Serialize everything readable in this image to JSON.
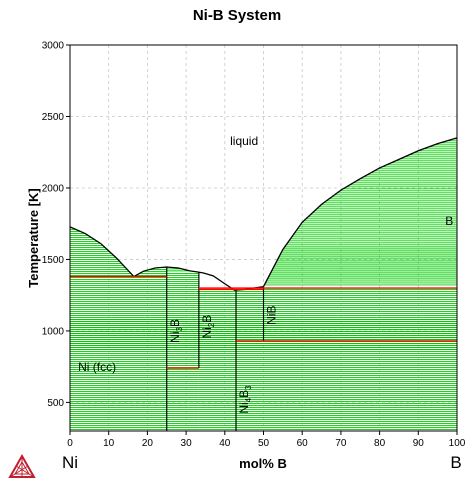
{
  "chart_data": {
    "type": "phase-diagram",
    "title": "Ni-B System",
    "xlabel": "mol% B",
    "ylabel": "Temperature [K]",
    "xlim": [
      0,
      100
    ],
    "ylim": [
      300,
      3000
    ],
    "xticks": [
      0,
      10,
      20,
      30,
      40,
      50,
      60,
      70,
      80,
      90,
      100
    ],
    "yticks": [
      500,
      1000,
      1500,
      2000,
      2500,
      3000
    ],
    "end_labels": {
      "left": "Ni",
      "right": "B"
    },
    "grid": true,
    "colors": {
      "two_phase_tie_lines": "#00cc00",
      "invariant_lines": "#ff0000",
      "boundaries": "#000000"
    },
    "liquidus": [
      {
        "x": 0,
        "y": 1728
      },
      {
        "x": 4,
        "y": 1680
      },
      {
        "x": 8,
        "y": 1610
      },
      {
        "x": 12,
        "y": 1510
      },
      {
        "x": 16.5,
        "y": 1380
      },
      {
        "x": 19,
        "y": 1418
      },
      {
        "x": 22,
        "y": 1440
      },
      {
        "x": 25,
        "y": 1447
      },
      {
        "x": 28,
        "y": 1440
      },
      {
        "x": 31,
        "y": 1420
      },
      {
        "x": 33,
        "y": 1412
      },
      {
        "x": 34.5,
        "y": 1405
      },
      {
        "x": 37,
        "y": 1385
      },
      {
        "x": 40,
        "y": 1330
      },
      {
        "x": 42.5,
        "y": 1285
      },
      {
        "x": 45,
        "y": 1290
      },
      {
        "x": 47.5,
        "y": 1300
      },
      {
        "x": 50,
        "y": 1310
      },
      {
        "x": 55,
        "y": 1570
      },
      {
        "x": 60,
        "y": 1760
      },
      {
        "x": 65,
        "y": 1885
      },
      {
        "x": 70,
        "y": 1985
      },
      {
        "x": 75,
        "y": 2065
      },
      {
        "x": 80,
        "y": 2140
      },
      {
        "x": 85,
        "y": 2200
      },
      {
        "x": 90,
        "y": 2260
      },
      {
        "x": 95,
        "y": 2310
      },
      {
        "x": 100,
        "y": 2350
      }
    ],
    "compounds": [
      {
        "label_main": "Ni",
        "label_sub": "3",
        "label_tail": "B",
        "x": 25,
        "from": 300,
        "to": 1447
      },
      {
        "label_main": "Ni",
        "label_sub": "2",
        "label_tail": "B",
        "x": 33.3,
        "from": 740,
        "to": 1412
      },
      {
        "label_main": "Ni",
        "label_sub": "4",
        "label_tail": "B",
        "label_sub2": "3",
        "x": 42.9,
        "from": 300,
        "to": 1285
      },
      {
        "label_main": "NiB",
        "x": 50,
        "from": 930,
        "to": 1310
      }
    ],
    "invariants": [
      {
        "x1": 0,
        "x2": 25,
        "y": 1380
      },
      {
        "x1": 33.3,
        "x2": 42.9,
        "y": 1290
      },
      {
        "x1": 42.9,
        "x2": 50,
        "y": 1290
      },
      {
        "x1": 33.3,
        "x2": 100,
        "y": 1300
      },
      {
        "x1": 25,
        "x2": 33.3,
        "y": 740
      },
      {
        "x1": 42.9,
        "x2": 100,
        "y": 930
      }
    ],
    "regions": [
      {
        "label": "liquid",
        "x": 45,
        "y": 2300
      },
      {
        "label": "Ni (fcc)",
        "x": 7,
        "y": 720
      },
      {
        "label": "B",
        "x": 98,
        "y": 1740
      }
    ]
  }
}
